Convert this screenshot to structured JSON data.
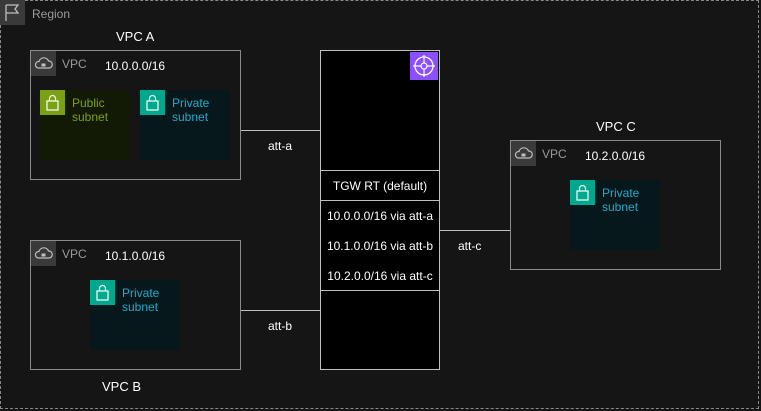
{
  "region": {
    "label": "Region"
  },
  "vpcs": {
    "a": {
      "title": "VPC A",
      "tag": "VPC",
      "cidr": "10.0.0.0/16",
      "public_subnet": "Public\nsubnet",
      "private_subnet": "Private\nsubnet"
    },
    "b": {
      "title": "VPC B",
      "tag": "VPC",
      "cidr": "10.1.0.0/16",
      "private_subnet": "Private\nsubnet"
    },
    "c": {
      "title": "VPC C",
      "tag": "VPC",
      "cidr": "10.2.0.0/16",
      "private_subnet": "Private\nsubnet"
    }
  },
  "tgw": {
    "route_table_title": "TGW RT (default)",
    "routes": [
      "10.0.0.0/16 via att-a",
      "10.1.0.0/16 via att-b",
      "10.2.0.0/16 via att-c"
    ]
  },
  "attachments": {
    "a": "att-a",
    "b": "att-b",
    "c": "att-c"
  },
  "colors": {
    "public": "#7aa116",
    "private": "#01a88d",
    "private_text": "#22a9c9",
    "tgw": "#8c4fff"
  },
  "icons": {
    "region": "flag-icon",
    "vpc": "cloud-lock-icon",
    "subnet": "padlock-icon",
    "tgw": "transit-gateway-icon"
  }
}
